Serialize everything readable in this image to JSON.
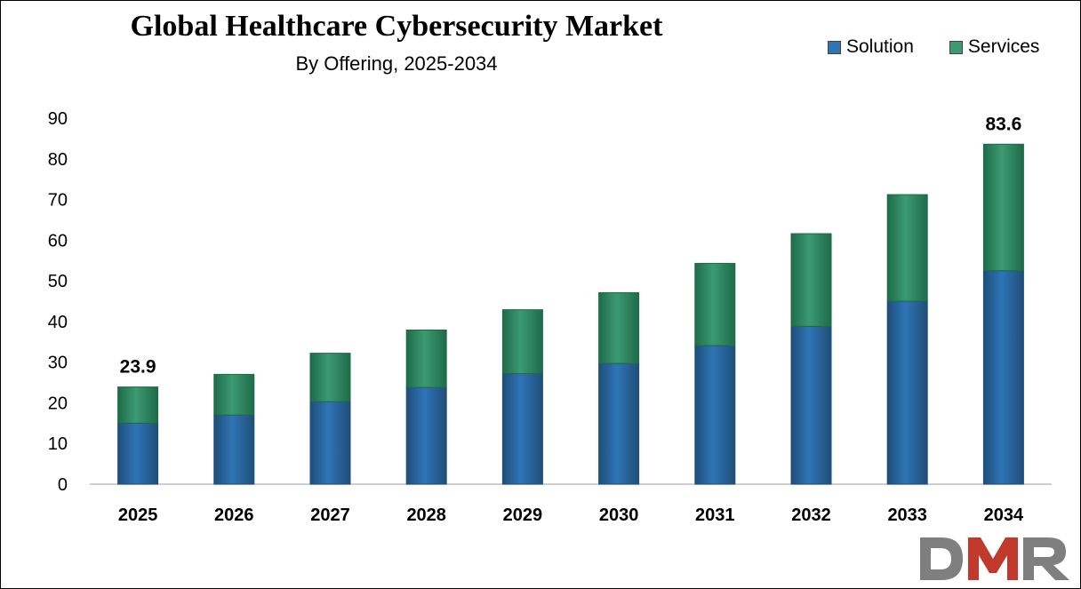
{
  "title": "Global Healthcare Cybersecurity Market",
  "subtitle": "By Offering, 2025-2034",
  "legend": {
    "solution_label": "Solution",
    "services_label": "Services"
  },
  "logo": {
    "text": "DMR",
    "colors": {
      "d": "#7f7f7f",
      "m": "#c0392b",
      "r": "#7f7f7f"
    }
  },
  "colors": {
    "solution": "#2e75b6",
    "solution_dark": "#1f4e79",
    "services": "#3c9a72",
    "services_dark": "#1e6b4a",
    "axis": "#bfbfbf"
  },
  "chart_data": {
    "type": "bar",
    "stacked": true,
    "categories": [
      "2025",
      "2026",
      "2027",
      "2028",
      "2029",
      "2030",
      "2031",
      "2032",
      "2033",
      "2034"
    ],
    "series": [
      {
        "name": "Solution",
        "values": [
          15.0,
          17.0,
          20.3,
          23.8,
          27.2,
          29.7,
          34.1,
          38.8,
          45.0,
          52.5
        ]
      },
      {
        "name": "Services",
        "values": [
          8.9,
          10.0,
          11.9,
          14.1,
          15.7,
          17.4,
          20.2,
          22.8,
          26.2,
          31.1
        ]
      }
    ],
    "data_labels": [
      {
        "category": "2025",
        "text": "23.9"
      },
      {
        "category": "2034",
        "text": "83.6"
      }
    ],
    "yticks": [
      0,
      10,
      20,
      30,
      40,
      50,
      60,
      70,
      80,
      90
    ],
    "ylim": [
      0,
      90
    ],
    "xlabel": "",
    "ylabel": "",
    "grid": false,
    "legend_position": "top-right"
  }
}
